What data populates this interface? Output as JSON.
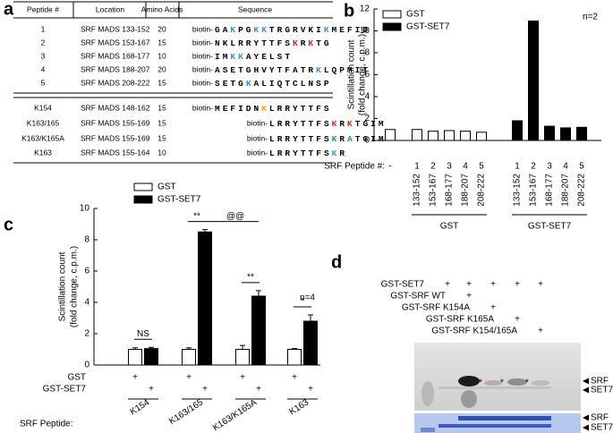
{
  "panel_labels": [
    "a",
    "b",
    "c",
    "d"
  ],
  "table": {
    "headers": [
      "Peptide #",
      "Location",
      "Amino Acids",
      "Sequence"
    ],
    "groups": [
      [
        {
          "id": "1",
          "location": "SRF MADS 133-152",
          "amino_acids": 20,
          "prefix": "biotin-",
          "sequence": [
            {
              "text": "GA"
            },
            {
              "text": "K",
              "color": "#3d8ec9"
            },
            {
              "text": "PG"
            },
            {
              "text": "KK",
              "color": "#3d8ec9"
            },
            {
              "text": "TRGRVKI"
            },
            {
              "text": "K",
              "color": "#3d8ec9"
            },
            {
              "text": "MEFID"
            }
          ]
        },
        {
          "id": "2",
          "location": "SRF MADS 153-167",
          "amino_acids": 15,
          "prefix": "biotin-",
          "color": "#e8201e",
          "sequence": [
            {
              "text": "NKLRRYTTFS"
            },
            {
              "text": "K",
              "color": "#e8201e"
            },
            {
              "text": "R"
            },
            {
              "text": "K",
              "color": "#e8201e"
            },
            {
              "text": "TG"
            }
          ]
        },
        {
          "id": "3",
          "location": "SRF MADS 168-177",
          "amino_acids": 10,
          "prefix": "biotin-",
          "sequence": [
            {
              "text": "IM"
            },
            {
              "text": "KK",
              "color": "#3d8ec9"
            },
            {
              "text": "AYELST"
            }
          ]
        },
        {
          "id": "4",
          "location": "SRF MADS 188-207",
          "amino_acids": 20,
          "prefix": "biotin-",
          "sequence": [
            {
              "text": "ASETGHVYTFATR"
            },
            {
              "text": "K",
              "color": "#3d8ec9"
            },
            {
              "text": "LQPMIT"
            }
          ]
        },
        {
          "id": "5",
          "location": "SRF MADS 208-222",
          "amino_acids": 15,
          "prefix": "biotin-",
          "sequence": [
            {
              "text": "SETG"
            },
            {
              "text": "K",
              "color": "#3d8ec9"
            },
            {
              "text": "ALIQTCLNSP"
            }
          ]
        }
      ],
      [
        {
          "id": "K154",
          "location": "SRF MADS 148-162",
          "amino_acids": 15,
          "prefix": "biotin-",
          "color": "#f0a800",
          "sequence": [
            {
              "text": "MEFIDN"
            },
            {
              "text": "K",
              "color": "#f0a800"
            },
            {
              "text": "LRRYTTFS"
            }
          ]
        },
        {
          "id": "K163/165",
          "location": "SRF MADS 155-169",
          "amino_acids": 15,
          "prefix": "biotin-",
          "color": "#e8201e",
          "sequence": [
            {
              "text": "LRRYTTFS"
            },
            {
              "text": "K",
              "color": "#e8201e"
            },
            {
              "text": "R"
            },
            {
              "text": "K",
              "color": "#e8201e"
            },
            {
              "text": "TGIM"
            }
          ]
        },
        {
          "id": "K163/K165A",
          "location": "SRF MADS 155-169",
          "amino_acids": 15,
          "prefix": "biotin-",
          "color": "#22a04a",
          "sequence": [
            {
              "text": "LRRYTTFS"
            },
            {
              "text": "K",
              "color": "#22a04a"
            },
            {
              "text": "R"
            },
            {
              "text": "A",
              "color": "#22a04a"
            },
            {
              "text": "TGIM"
            }
          ]
        },
        {
          "id": "K163",
          "location": "SRF MADS 155-164",
          "amino_acids": 10,
          "prefix": "biotin-",
          "color": "#27a9d8",
          "sequence": [
            {
              "text": "LRRYTTFS"
            },
            {
              "text": "K",
              "color": "#27a9d8"
            },
            {
              "text": "R"
            }
          ]
        }
      ]
    ]
  },
  "chart_data": [
    {
      "type": "bar",
      "ylabel_lines": [
        "Scintillation count",
        "(fold change, c.p.m.)"
      ],
      "xlabel": "SRF Peptide #:",
      "categories": [
        "-",
        "1",
        "2",
        "3",
        "4",
        "5",
        "1",
        "2",
        "3",
        "4",
        "5"
      ],
      "range_labels": [
        null,
        "133-152",
        "153-167",
        "168-177",
        "188-207",
        "208-222",
        "133-152",
        "153-167",
        "168-177",
        "188-207",
        "208-222"
      ],
      "range_label_highlight": {
        "index": 7,
        "color": "#e8201e"
      },
      "groups": [
        "GST",
        "GST-SET7"
      ],
      "series": [
        {
          "name": "GST",
          "color": "#ffffff",
          "values": [
            1.0,
            1.0,
            0.85,
            0.9,
            0.85,
            0.75,
            null,
            null,
            null,
            null,
            null
          ]
        },
        {
          "name": "GST-SET7",
          "color": "#000000",
          "values": [
            null,
            null,
            null,
            null,
            null,
            null,
            1.8,
            10.9,
            1.3,
            1.15,
            1.2
          ]
        }
      ],
      "ylim": [
        0,
        12
      ],
      "yticks": [
        0,
        2,
        4,
        6,
        8,
        10,
        12
      ],
      "note": "n=2",
      "legend": "upper left"
    },
    {
      "type": "bar",
      "ylabel_lines": [
        "Scintillation count",
        "(fold change, c.p.m.)"
      ],
      "xlabel": "SRF Peptide:",
      "categories": [
        "K154",
        "K163/165",
        "K163/K165A",
        "K163"
      ],
      "category_colors": [
        "#f0a800",
        "#e8201e",
        "#22a04a",
        "#27a9d8"
      ],
      "series": [
        {
          "name": "GST",
          "color": "#ffffff",
          "values": [
            1.0,
            1.0,
            1.0,
            1.0
          ],
          "errors": [
            0.1,
            0.1,
            0.25,
            0.05
          ]
        },
        {
          "name": "GST-SET7",
          "color": "#000000",
          "values": [
            1.05,
            8.5,
            4.4,
            2.8
          ],
          "errors": [
            0.08,
            0.15,
            0.35,
            0.4
          ]
        }
      ],
      "ylim": [
        0,
        10
      ],
      "yticks": [
        0,
        2,
        4,
        6,
        8,
        10
      ],
      "significance": [
        "NS",
        "**",
        "**",
        "*"
      ],
      "between_significance": "@@",
      "treatment_rows": [
        {
          "label": "GST",
          "marks": [
            "+",
            "+",
            "+",
            "+"
          ]
        },
        {
          "label": "GST-SET7",
          "marks": [
            "+",
            "+",
            "+",
            "+"
          ]
        }
      ],
      "note": "n=4",
      "legend": "upper left"
    }
  ],
  "gel": {
    "rows": [
      {
        "label": "GST-SET7",
        "marks": [
          "+",
          "+",
          "+",
          "+",
          "+"
        ]
      },
      {
        "label": "GST-SRF WT",
        "marks": [
          null,
          "+",
          null,
          null,
          null
        ]
      },
      {
        "label": "GST-SRF K154A",
        "marks": [
          null,
          null,
          "+",
          null,
          null
        ]
      },
      {
        "label": "GST-SRF K165A",
        "marks": [
          null,
          null,
          null,
          "+",
          null
        ]
      },
      {
        "label": "GST-SRF K154/165A",
        "marks": [
          null,
          null,
          null,
          null,
          "+"
        ]
      }
    ],
    "asterisks": [
      "*",
      "*",
      "*"
    ],
    "panels": [
      {
        "labels": [
          "SRF",
          "SET7"
        ]
      },
      {
        "labels": [
          "SRF",
          "SET7"
        ]
      }
    ]
  }
}
